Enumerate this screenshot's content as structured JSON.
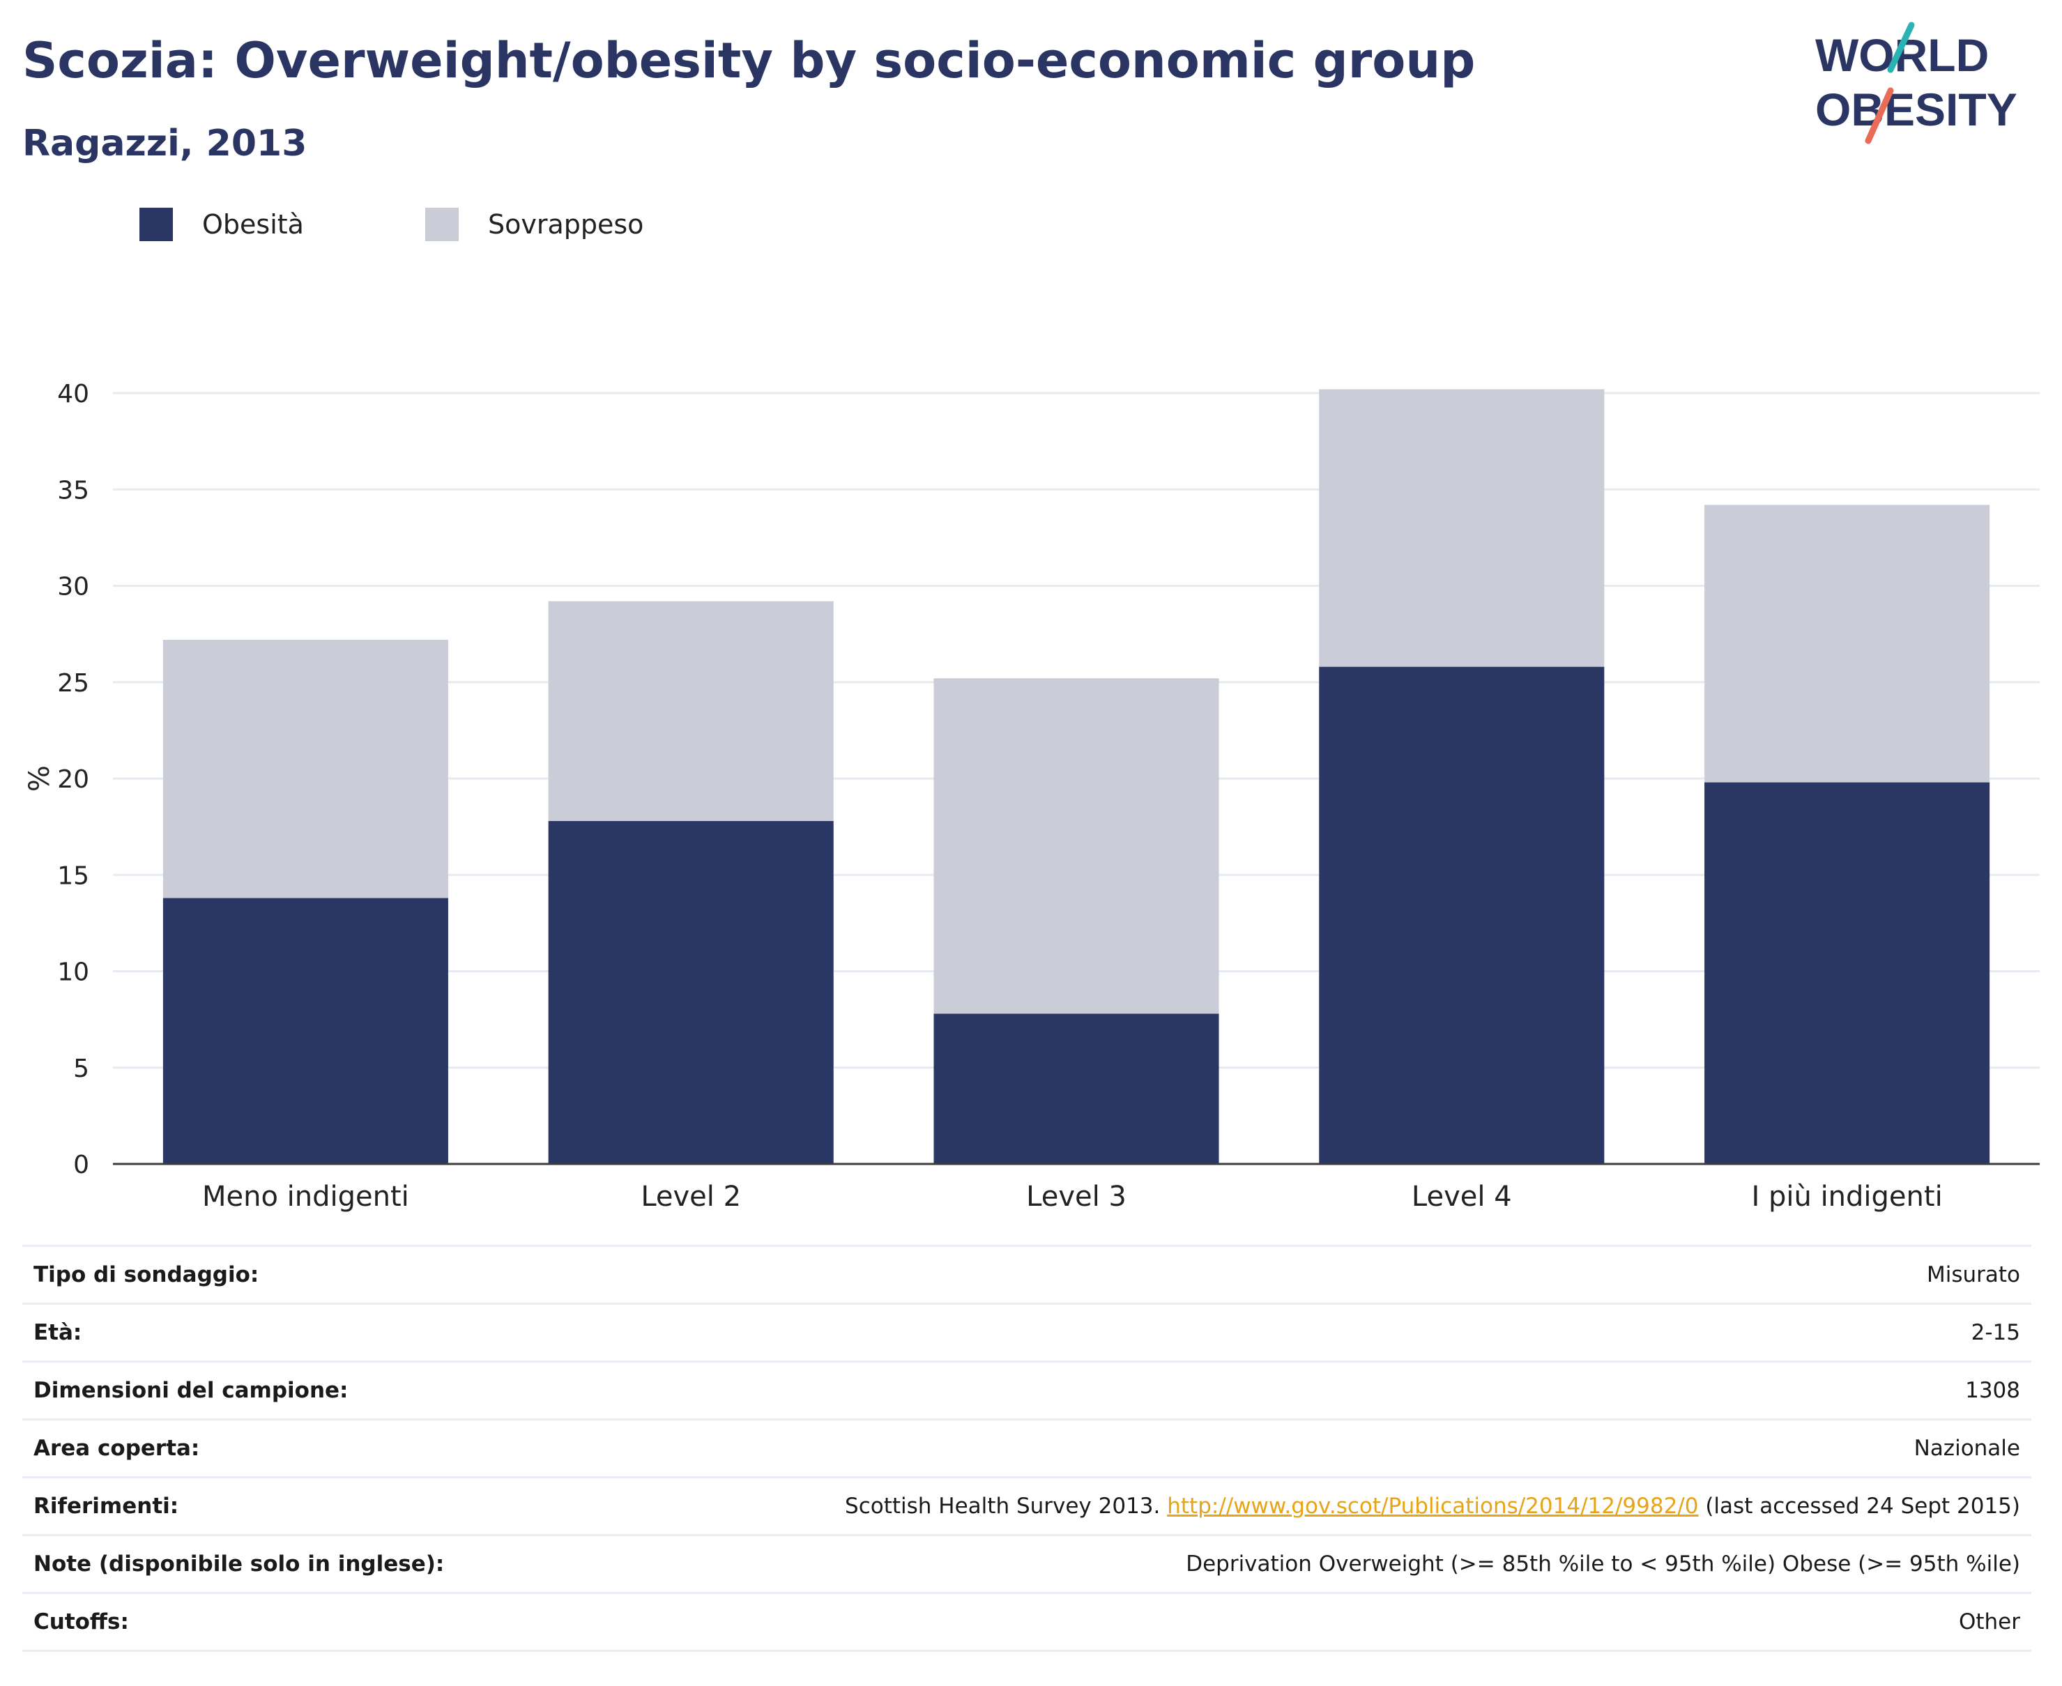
{
  "title": "Scozia: Overweight/obesity by socio-economic group",
  "subtitle": "Ragazzi, 2013",
  "logo": {
    "line1": "WORLD",
    "line2": "OBESITY"
  },
  "legend": [
    {
      "label": "Obesità",
      "color": "#2a3663"
    },
    {
      "label": "Sovrappeso",
      "color": "#cacdd8"
    }
  ],
  "chart_data": {
    "type": "bar",
    "stacked": true,
    "categories": [
      "Meno indigenti",
      "Level 2",
      "Level 3",
      "Level 4",
      "I più indigenti"
    ],
    "series": [
      {
        "name": "Obesità",
        "color": "#2a3663",
        "values": [
          13.8,
          17.8,
          7.8,
          25.8,
          19.8
        ]
      },
      {
        "name": "Sovrappeso",
        "color": "#cacdd8",
        "values": [
          13.4,
          11.4,
          17.4,
          14.4,
          14.4
        ]
      }
    ],
    "ylabel": "%",
    "xlabel": "",
    "ylim": [
      0,
      40
    ],
    "yticks": [
      0,
      5,
      10,
      15,
      20,
      25,
      30,
      35,
      40
    ],
    "grid": true,
    "legend_position": "top-left"
  },
  "info": [
    {
      "key": "Tipo di sondaggio:",
      "value": "Misurato"
    },
    {
      "key": "Età:",
      "value": "2-15"
    },
    {
      "key": "Dimensioni del campione:",
      "value": "1308"
    },
    {
      "key": "Area coperta:",
      "value": "Nazionale"
    },
    {
      "key": "Riferimenti:",
      "value_pre": "Scottish Health Survey 2013. ",
      "link": "http://www.gov.scot/Publications/2014/12/9982/0",
      "value_post": " (last accessed 24 Sept 2015)"
    },
    {
      "key": "Note (disponibile solo in inglese):",
      "value": "Deprivation Overweight (>= 85th %ile to < 95th %ile) Obese (>= 95th %ile)"
    },
    {
      "key": "Cutoffs:",
      "value": "Other"
    }
  ]
}
